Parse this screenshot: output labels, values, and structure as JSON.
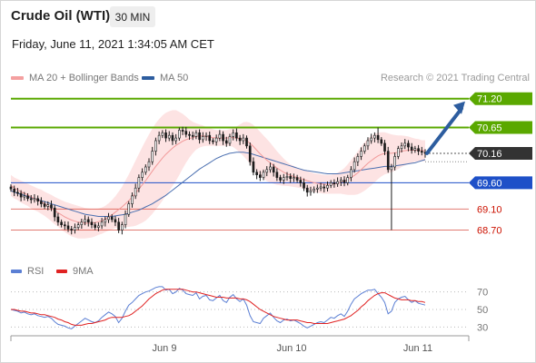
{
  "header": {
    "title": "Crude Oil (WTI)",
    "timeframe": "30 MIN",
    "datetime": "Friday, June 11, 2021 1:34:05 AM CET"
  },
  "legend": {
    "items": [
      {
        "label": "MA 20 + Bollinger Bands",
        "color": "#f4a0a0"
      },
      {
        "label": "MA 50",
        "color": "#2d5d9f"
      }
    ],
    "copyright": "Research © 2021 Trading Central"
  },
  "colors": {
    "resistance": "#5aa800",
    "support": "#2f6fe0",
    "pivot": "#1e50c8",
    "lower_support": "#cc1100",
    "current": "#333333",
    "arrow": "#2d5d9f",
    "candle": "#1a1a1a",
    "bollinger_fill": "#fde3e3",
    "ma20": "#f29a9a",
    "ma50": "#4a6fb0",
    "rsi": "#5b7fd4",
    "rsi_ma": "#e02222"
  },
  "chart_data": [
    {
      "type": "candlestick",
      "title": "Crude Oil (WTI)",
      "ylim": [
        68.45,
        71.35
      ],
      "x_ticks": [
        "Jun 9",
        "Jun 10",
        "Jun 11"
      ],
      "price_levels": [
        {
          "value": 71.2,
          "label": "71.20",
          "kind": "resistance",
          "style": "box"
        },
        {
          "value": 70.65,
          "label": "70.65",
          "kind": "resistance",
          "style": "box"
        },
        {
          "value": 70.16,
          "label": "70.16",
          "kind": "current",
          "style": "box"
        },
        {
          "value": 69.6,
          "label": "69.60",
          "kind": "pivot",
          "style": "box"
        },
        {
          "value": 69.1,
          "label": "69.10",
          "kind": "support",
          "style": "text"
        },
        {
          "value": 68.7,
          "label": "68.70",
          "kind": "support",
          "style": "text"
        }
      ],
      "close": [
        69.48,
        69.42,
        69.4,
        69.33,
        69.35,
        69.3,
        69.28,
        69.3,
        69.25,
        69.2,
        69.15,
        69.18,
        69.12,
        68.95,
        68.85,
        68.8,
        68.78,
        68.72,
        68.7,
        68.75,
        68.8,
        68.85,
        68.9,
        68.85,
        68.8,
        68.75,
        68.78,
        68.85,
        68.9,
        68.95,
        68.9,
        68.85,
        68.7,
        68.8,
        69.0,
        69.2,
        69.35,
        69.5,
        69.7,
        69.8,
        69.9,
        70.0,
        70.2,
        70.4,
        70.5,
        70.55,
        70.45,
        70.5,
        70.4,
        70.45,
        70.6,
        70.58,
        70.52,
        70.5,
        70.48,
        70.55,
        70.42,
        70.48,
        70.5,
        70.4,
        70.38,
        70.45,
        70.52,
        70.4,
        70.35,
        70.48,
        70.55,
        70.45,
        70.4,
        70.45,
        70.3,
        70.0,
        69.8,
        69.75,
        69.7,
        69.8,
        69.85,
        69.9,
        69.8,
        69.7,
        69.65,
        69.7,
        69.72,
        69.68,
        69.7,
        69.65,
        69.6,
        69.5,
        69.42,
        69.45,
        69.48,
        69.5,
        69.52,
        69.5,
        69.55,
        69.6,
        69.58,
        69.62,
        69.65,
        69.6,
        69.7,
        69.85,
        70.0,
        70.1,
        70.2,
        70.3,
        70.4,
        70.45,
        70.5,
        70.42,
        70.35,
        70.2,
        69.85,
        69.9,
        70.1,
        70.25,
        70.3,
        70.35,
        70.28,
        70.22,
        70.25,
        70.2,
        70.18,
        70.16
      ],
      "ma20": [
        69.55,
        69.5,
        69.47,
        69.43,
        69.4,
        69.37,
        69.33,
        69.3,
        69.27,
        69.24,
        69.2,
        69.16,
        69.12,
        69.07,
        69.03,
        68.99,
        68.95,
        68.92,
        68.89,
        68.87,
        68.85,
        68.84,
        68.83,
        68.83,
        68.83,
        68.84,
        68.86,
        68.88,
        68.91,
        68.95,
        68.99,
        69.04,
        69.09,
        69.14,
        69.2,
        69.26,
        69.33,
        69.4,
        69.48,
        69.56,
        69.64,
        69.73,
        69.82,
        69.91,
        69.99,
        70.07,
        70.14,
        70.2,
        70.26,
        70.31,
        70.35,
        70.39,
        70.42,
        70.44,
        70.46,
        70.48,
        70.49,
        70.49,
        70.48,
        70.47,
        70.46,
        70.45,
        70.45,
        70.45,
        70.45,
        70.46,
        70.46,
        70.45,
        70.44,
        70.43,
        70.4,
        70.35,
        70.29,
        70.22,
        70.15,
        70.09,
        70.03,
        69.98,
        69.93,
        69.88,
        69.84,
        69.8,
        69.77,
        69.74,
        69.72,
        69.7,
        69.68,
        69.66,
        69.64,
        69.62,
        69.6,
        69.59,
        69.58,
        69.57,
        69.57,
        69.57,
        69.58,
        69.59,
        69.61,
        69.63,
        69.66,
        69.7,
        69.74,
        69.79,
        69.85,
        69.91,
        69.97,
        70.02,
        70.07,
        70.11,
        70.14,
        70.16,
        70.16,
        70.16,
        70.17,
        70.18,
        70.2,
        70.21,
        70.22,
        70.22,
        70.22,
        70.22,
        70.21,
        70.21
      ],
      "ma50": [
        69.45,
        69.42,
        69.4,
        69.38,
        69.36,
        69.34,
        69.32,
        69.3,
        69.28,
        69.26,
        69.24,
        69.22,
        69.2,
        69.18,
        69.16,
        69.14,
        69.12,
        69.1,
        69.08,
        69.06,
        69.04,
        69.02,
        69.0,
        68.99,
        68.98,
        68.97,
        68.96,
        68.96,
        68.96,
        68.96,
        68.96,
        68.97,
        68.98,
        68.99,
        69.0,
        69.02,
        69.04,
        69.06,
        69.08,
        69.11,
        69.14,
        69.17,
        69.2,
        69.24,
        69.28,
        69.32,
        69.36,
        69.41,
        69.46,
        69.51,
        69.56,
        69.61,
        69.66,
        69.71,
        69.76,
        69.81,
        69.86,
        69.9,
        69.94,
        69.98,
        70.02,
        70.06,
        70.09,
        70.12,
        70.14,
        70.16,
        70.17,
        70.18,
        70.18,
        70.18,
        70.17,
        70.16,
        70.14,
        70.12,
        70.1,
        70.08,
        70.06,
        70.04,
        70.02,
        70.0,
        69.98,
        69.96,
        69.94,
        69.92,
        69.9,
        69.88,
        69.86,
        69.84,
        69.83,
        69.82,
        69.81,
        69.8,
        69.79,
        69.78,
        69.77,
        69.77,
        69.77,
        69.77,
        69.78,
        69.79,
        69.8,
        69.81,
        69.82,
        69.83,
        69.84,
        69.85,
        69.86,
        69.87,
        69.88,
        69.89,
        69.9,
        69.91,
        69.91,
        69.91,
        69.92,
        69.93,
        69.94,
        69.95,
        69.96,
        69.97,
        69.98,
        70.0,
        70.02,
        70.04
      ],
      "bollinger_width": [
        0.2,
        0.2,
        0.2,
        0.21,
        0.21,
        0.21,
        0.22,
        0.22,
        0.22,
        0.23,
        0.23,
        0.24,
        0.25,
        0.26,
        0.27,
        0.28,
        0.29,
        0.3,
        0.31,
        0.31,
        0.31,
        0.3,
        0.29,
        0.28,
        0.27,
        0.26,
        0.25,
        0.25,
        0.25,
        0.26,
        0.28,
        0.3,
        0.34,
        0.38,
        0.44,
        0.5,
        0.56,
        0.62,
        0.67,
        0.72,
        0.76,
        0.79,
        0.81,
        0.82,
        0.82,
        0.81,
        0.79,
        0.76,
        0.72,
        0.67,
        0.6,
        0.52,
        0.44,
        0.36,
        0.3,
        0.25,
        0.22,
        0.2,
        0.18,
        0.17,
        0.16,
        0.15,
        0.15,
        0.15,
        0.15,
        0.16,
        0.18,
        0.22,
        0.27,
        0.32,
        0.36,
        0.39,
        0.41,
        0.42,
        0.42,
        0.41,
        0.4,
        0.38,
        0.35,
        0.32,
        0.29,
        0.26,
        0.23,
        0.21,
        0.2,
        0.19,
        0.18,
        0.18,
        0.18,
        0.18,
        0.18,
        0.18,
        0.18,
        0.18,
        0.18,
        0.18,
        0.19,
        0.2,
        0.22,
        0.25,
        0.29,
        0.33,
        0.37,
        0.41,
        0.44,
        0.46,
        0.47,
        0.47,
        0.46,
        0.44,
        0.42,
        0.4,
        0.38,
        0.36,
        0.34,
        0.32,
        0.3,
        0.28,
        0.26,
        0.24,
        0.22,
        0.21,
        0.2,
        0.2
      ]
    },
    {
      "type": "line",
      "series": [
        {
          "name": "RSI"
        },
        {
          "name": "9MA"
        }
      ],
      "ylim": [
        20,
        80
      ],
      "y_ticks": [
        70,
        50,
        30
      ],
      "rsi": [
        50,
        49,
        48,
        46,
        47,
        45,
        44,
        45,
        43,
        42,
        41,
        42,
        40,
        36,
        33,
        32,
        31,
        29,
        28,
        31,
        34,
        37,
        40,
        38,
        36,
        35,
        37,
        41,
        44,
        47,
        45,
        42,
        35,
        40,
        48,
        55,
        58,
        62,
        66,
        68,
        70,
        71,
        73,
        75,
        76,
        76,
        72,
        73,
        68,
        70,
        74,
        72,
        68,
        67,
        66,
        69,
        62,
        65,
        66,
        61,
        60,
        63,
        66,
        60,
        58,
        64,
        67,
        62,
        59,
        62,
        55,
        43,
        36,
        35,
        34,
        40,
        43,
        46,
        41,
        37,
        35,
        38,
        39,
        37,
        38,
        36,
        34,
        31,
        29,
        31,
        33,
        35,
        36,
        35,
        38,
        41,
        40,
        43,
        45,
        42,
        48,
        56,
        62,
        65,
        68,
        70,
        72,
        72,
        73,
        68,
        64,
        58,
        45,
        48,
        58,
        62,
        64,
        65,
        61,
        58,
        60,
        57,
        56,
        55
      ],
      "rsi_ma": [
        50,
        50,
        49,
        48,
        48,
        47,
        46,
        46,
        45,
        44,
        44,
        43,
        42,
        41,
        39,
        38,
        36,
        35,
        33,
        32,
        32,
        32,
        33,
        34,
        34,
        35,
        36,
        37,
        38,
        40,
        41,
        41,
        41,
        41,
        42,
        43,
        45,
        48,
        51,
        54,
        58,
        62,
        65,
        68,
        70,
        72,
        73,
        73,
        73,
        73,
        73,
        73,
        72,
        71,
        70,
        70,
        69,
        68,
        67,
        66,
        65,
        64,
        64,
        64,
        63,
        63,
        63,
        63,
        62,
        62,
        61,
        59,
        56,
        53,
        50,
        48,
        46,
        44,
        42,
        41,
        40,
        39,
        38,
        38,
        38,
        38,
        37,
        36,
        35,
        35,
        34,
        34,
        34,
        34,
        34,
        35,
        36,
        37,
        38,
        39,
        41,
        43,
        46,
        49,
        53,
        56,
        60,
        63,
        66,
        68,
        69,
        69,
        67,
        65,
        63,
        62,
        61,
        61,
        61,
        60,
        60,
        59,
        59,
        58
      ]
    }
  ]
}
